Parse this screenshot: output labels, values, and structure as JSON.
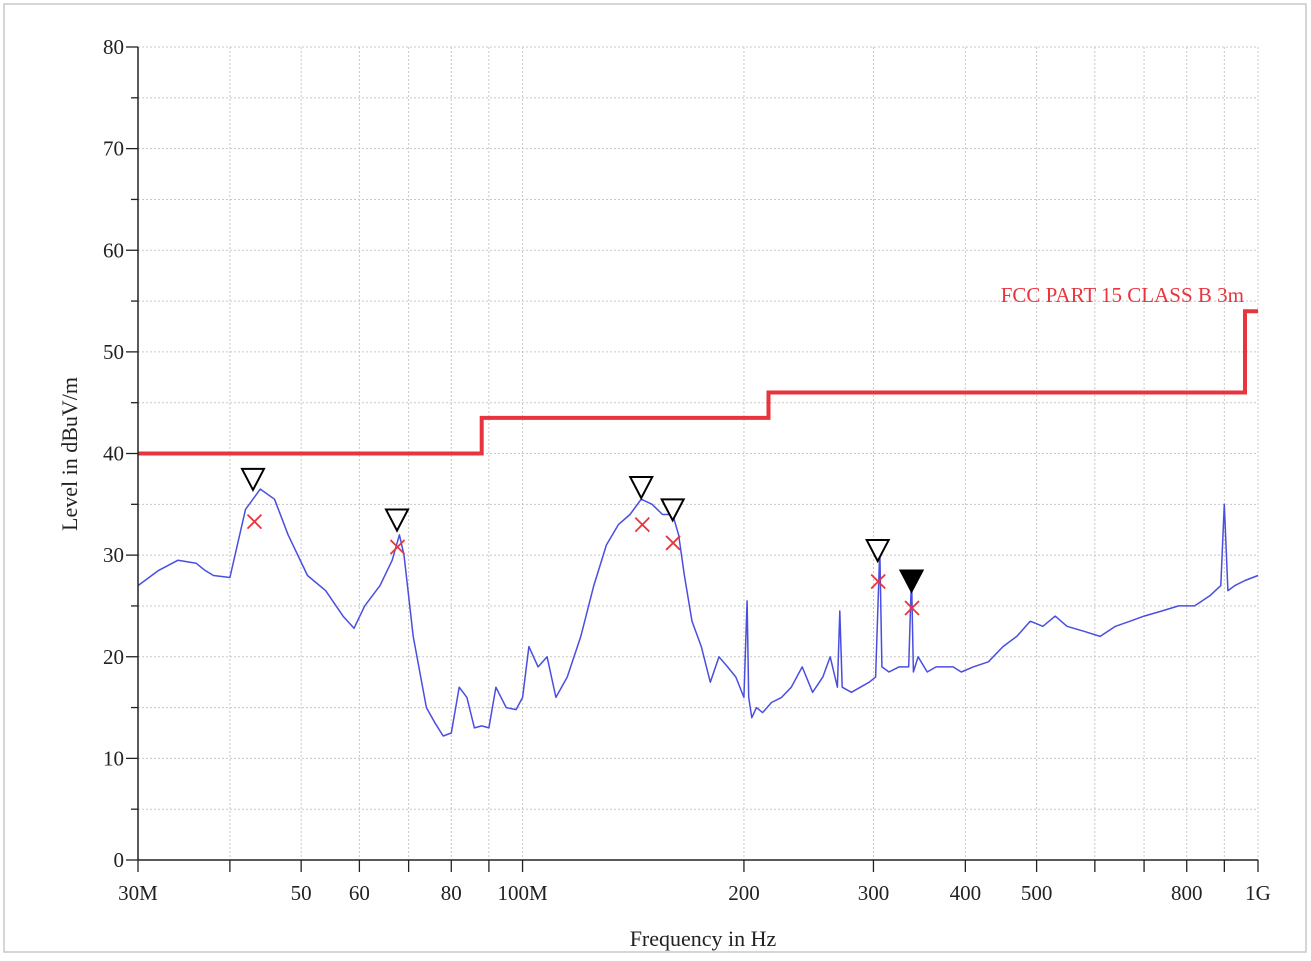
{
  "chart_data": {
    "type": "line",
    "xlabel": "Frequency in Hz",
    "ylabel": "Level in dBuV/m",
    "x_scale": "log",
    "xlim": [
      30000000,
      1000000000
    ],
    "ylim": [
      0,
      80
    ],
    "grid": true,
    "x_ticks": [
      {
        "value": 30000000,
        "label": "30M"
      },
      {
        "value": 50000000,
        "label": "50"
      },
      {
        "value": 60000000,
        "label": "60"
      },
      {
        "value": 80000000,
        "label": "80"
      },
      {
        "value": 100000000,
        "label": "100M"
      },
      {
        "value": 200000000,
        "label": "200"
      },
      {
        "value": 300000000,
        "label": "300"
      },
      {
        "value": 400000000,
        "label": "400"
      },
      {
        "value": 500000000,
        "label": "500"
      },
      {
        "value": 800000000,
        "label": "800"
      },
      {
        "value": 1000000000,
        "label": "1G"
      }
    ],
    "y_ticks": [
      {
        "value": 0,
        "label": "0"
      },
      {
        "value": 10,
        "label": "10"
      },
      {
        "value": 20,
        "label": "20"
      },
      {
        "value": 30,
        "label": "30"
      },
      {
        "value": 40,
        "label": "40"
      },
      {
        "value": 50,
        "label": "50"
      },
      {
        "value": 60,
        "label": "60"
      },
      {
        "value": 70,
        "label": "70"
      },
      {
        "value": 80,
        "label": "80"
      }
    ],
    "limit_line": {
      "name": "FCC PART 15 CLASS B 3m",
      "color": "#e8353d",
      "x": [
        30000000,
        88000000,
        88000000,
        216000000,
        216000000,
        960000000,
        960000000,
        1000000000
      ],
      "y": [
        40,
        40,
        43.5,
        43.5,
        46,
        46,
        54,
        54
      ]
    },
    "series": [
      {
        "color": "#4a4ee0",
        "x": [
          30000000,
          32000000,
          34000000,
          36000000,
          37000000,
          38000000,
          40000000,
          42000000,
          44000000,
          46000000,
          48000000,
          51000000,
          54000000,
          57000000,
          59000000,
          61000000,
          64000000,
          66500000,
          68000000,
          69000000,
          71000000,
          74000000,
          76000000,
          78000000,
          80000000,
          82000000,
          84000000,
          86000000,
          88000000,
          90000000,
          92000000,
          95000000,
          98000000,
          100000000,
          102000000,
          105000000,
          108000000,
          111000000,
          115000000,
          120000000,
          125000000,
          130000000,
          135000000,
          140000000,
          145000000,
          150000000,
          155000000,
          160000000,
          163000000,
          166000000,
          170000000,
          175000000,
          180000000,
          185000000,
          190000000,
          195000000,
          200000000,
          202000000,
          203000000,
          205000000,
          208000000,
          212000000,
          218000000,
          225000000,
          232000000,
          240000000,
          248000000,
          256000000,
          262000000,
          268000000,
          270000000,
          272000000,
          280000000,
          288000000,
          296000000,
          302000000,
          306000000,
          308000000,
          315000000,
          325000000,
          335000000,
          338000000,
          340000000,
          345000000,
          355000000,
          365000000,
          375000000,
          385000000,
          395000000,
          410000000,
          430000000,
          450000000,
          470000000,
          490000000,
          510000000,
          530000000,
          550000000,
          580000000,
          610000000,
          640000000,
          670000000,
          700000000,
          740000000,
          780000000,
          820000000,
          860000000,
          890000000,
          900000000,
          910000000,
          930000000,
          960000000,
          1000000000
        ],
        "y": [
          27,
          28.5,
          29.5,
          29.2,
          28.5,
          28,
          27.8,
          34.5,
          36.5,
          35.5,
          32,
          28,
          26.5,
          24,
          22.8,
          25,
          27,
          29.5,
          32,
          30,
          22,
          15,
          13.5,
          12.2,
          12.5,
          17,
          16,
          13,
          13.2,
          13,
          17,
          15,
          14.8,
          16,
          21,
          19,
          20,
          16,
          18,
          22,
          27,
          31,
          33,
          34,
          35.5,
          35,
          34,
          34,
          32,
          28,
          23.5,
          21,
          17.5,
          20,
          19,
          18,
          16,
          25.5,
          16,
          14,
          15,
          14.5,
          15.5,
          16,
          17,
          19,
          16.5,
          18,
          20,
          17,
          24.5,
          17,
          16.5,
          17,
          17.5,
          18,
          30.5,
          19,
          18.5,
          19,
          19,
          28,
          18.5,
          20,
          18.5,
          19,
          19,
          19,
          18.5,
          19,
          19.5,
          21,
          22,
          23.5,
          23,
          24,
          23,
          22.5,
          22,
          23,
          23.5,
          24,
          24.5,
          25,
          25,
          26,
          27,
          35,
          26.5,
          27,
          27.5,
          28
        ]
      }
    ],
    "markers": {
      "peak_triangles": [
        {
          "x": 43000000,
          "y": 37.5,
          "filled": false
        },
        {
          "x": 67500000,
          "y": 33.5,
          "filled": false
        },
        {
          "x": 145000000,
          "y": 36.7,
          "filled": false
        },
        {
          "x": 160000000,
          "y": 34.5,
          "filled": false
        },
        {
          "x": 304000000,
          "y": 30.5,
          "filled": false
        },
        {
          "x": 338000000,
          "y": 27.5,
          "filled": true
        }
      ],
      "quasi_peak_crosses": [
        {
          "x": 43200000,
          "y": 33.3
        },
        {
          "x": 67600000,
          "y": 30.8
        },
        {
          "x": 145500000,
          "y": 33
        },
        {
          "x": 160200000,
          "y": 31.2
        },
        {
          "x": 304500000,
          "y": 27.4
        },
        {
          "x": 338500000,
          "y": 24.8
        }
      ]
    }
  }
}
